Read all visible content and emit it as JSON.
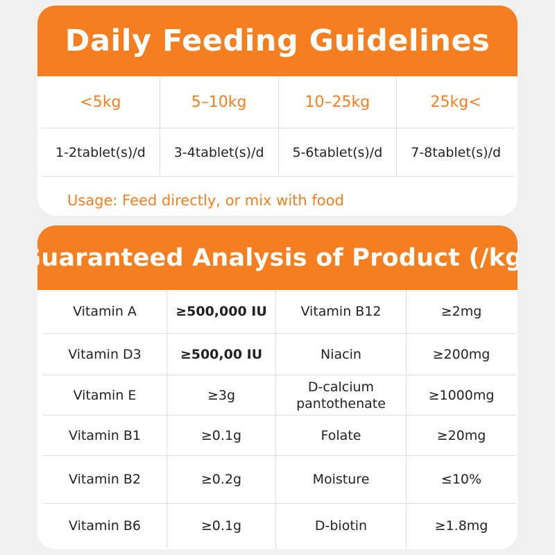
{
  "feeding": {
    "title": "Daily Feeding Guidelines",
    "weights": [
      "<5kg",
      "5–10kg",
      "10–25kg",
      "25kg<"
    ],
    "doses": [
      "1-2tablet(s)/d",
      "3-4tablet(s)/d",
      "5-6tablet(s)/d",
      "7-8tablet(s)/d"
    ],
    "usage": "Usage: Feed directly, or mix with food"
  },
  "analysis": {
    "title": "Guaranteed Analysis of Product (/kg)",
    "rows": [
      {
        "n1": "Vitamin A",
        "v1": "≥500,000 IU",
        "n2": "Vitamin B12",
        "v2": "≥2mg"
      },
      {
        "n1": "Vitamin D3",
        "v1": "≥500,00 IU",
        "n2": "Niacin",
        "v2": "≥200mg"
      },
      {
        "n1": "Vitamin E",
        "v1": "≥3g",
        "n2": "D-calcium pantothenate",
        "v2": "≥1000mg"
      },
      {
        "n1": "Vitamin B1",
        "v1": "≥0.1g",
        "n2": "Folate",
        "v2": "≥20mg"
      },
      {
        "n1": "Vitamin B2",
        "v1": "≥0.2g",
        "n2": "Moisture",
        "v2": "≤10%"
      },
      {
        "n1": "Vitamin B6",
        "v1": "≥0.1g",
        "n2": "D-biotin",
        "v2": "≥1.8mg"
      }
    ]
  },
  "colors": {
    "accent": "#f57f20",
    "background": "#f0f0f0",
    "card": "#ffffff"
  }
}
